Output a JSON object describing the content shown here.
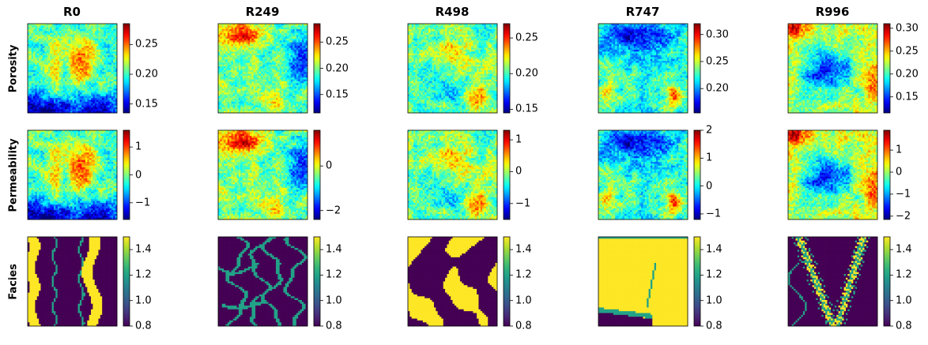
{
  "figure": {
    "rows": [
      "Porosity",
      "Permeability",
      "Facies"
    ],
    "columns": [
      "R0",
      "R249",
      "R498",
      "R747",
      "R996"
    ]
  },
  "chart_data": [
    {
      "type": "heatmap",
      "title": "R0",
      "ylabel": "Porosity",
      "colormap": "jet",
      "colorbar": {
        "range": [
          0.135,
          0.285
        ],
        "ticks": [
          0.15,
          0.2,
          0.25
        ],
        "tick_labels": [
          "0.15",
          "0.20",
          "0.25"
        ]
      }
    },
    {
      "type": "heatmap",
      "title": "R249",
      "colormap": "jet",
      "colorbar": {
        "range": [
          0.115,
          0.285
        ],
        "ticks": [
          0.15,
          0.2,
          0.25
        ],
        "tick_labels": [
          "0.15",
          "0.20",
          "0.25"
        ]
      }
    },
    {
      "type": "heatmap",
      "title": "R498",
      "colormap": "jet",
      "colorbar": {
        "range": [
          0.145,
          0.27
        ],
        "ticks": [
          0.15,
          0.2,
          0.25
        ],
        "tick_labels": [
          "0.15",
          "0.20",
          "0.25"
        ]
      }
    },
    {
      "type": "heatmap",
      "title": "R747",
      "colormap": "jet",
      "colorbar": {
        "range": [
          0.155,
          0.32
        ],
        "ticks": [
          0.2,
          0.25,
          0.3
        ],
        "tick_labels": [
          "0.20",
          "0.25",
          "0.30"
        ]
      }
    },
    {
      "type": "heatmap",
      "title": "R996",
      "colormap": "jet",
      "colorbar": {
        "range": [
          0.115,
          0.31
        ],
        "ticks": [
          0.15,
          0.2,
          0.25,
          0.3
        ],
        "tick_labels": [
          "0.15",
          "0.20",
          "0.25",
          "0.30"
        ]
      }
    },
    {
      "type": "heatmap",
      "ylabel": "Permeability",
      "colormap": "jet",
      "colorbar": {
        "range": [
          -1.6,
          1.6
        ],
        "ticks": [
          -1,
          0,
          1
        ],
        "tick_labels": [
          "−1",
          "0",
          "1"
        ]
      }
    },
    {
      "type": "heatmap",
      "colormap": "jet",
      "colorbar": {
        "range": [
          -2.4,
          1.6
        ],
        "ticks": [
          -2,
          0
        ],
        "tick_labels": [
          "−2",
          "0"
        ]
      }
    },
    {
      "type": "heatmap",
      "colormap": "jet",
      "colorbar": {
        "range": [
          -1.5,
          1.3
        ],
        "ticks": [
          -1,
          0,
          1
        ],
        "tick_labels": [
          "−1",
          "0",
          "1"
        ]
      }
    },
    {
      "type": "heatmap",
      "colormap": "jet",
      "colorbar": {
        "range": [
          -1.2,
          2.0
        ],
        "ticks": [
          -1,
          0,
          1,
          2
        ],
        "tick_labels": [
          "−1",
          "0",
          "1",
          "2"
        ]
      }
    },
    {
      "type": "heatmap",
      "colormap": "jet",
      "colorbar": {
        "range": [
          -2.15,
          1.9
        ],
        "ticks": [
          -2,
          -1,
          0,
          1
        ],
        "tick_labels": [
          "−2",
          "−1",
          "0",
          "1"
        ]
      }
    },
    {
      "type": "heatmap",
      "ylabel": "Facies",
      "colormap": "viridis",
      "colorbar": {
        "range": [
          0.8,
          1.5
        ],
        "ticks": [
          0.8,
          1.0,
          1.2,
          1.4
        ],
        "tick_labels": [
          "0.8",
          "1.0",
          "1.2",
          "1.4"
        ]
      }
    },
    {
      "type": "heatmap",
      "colormap": "viridis",
      "colorbar": {
        "range": [
          0.8,
          1.5
        ],
        "ticks": [
          0.8,
          1.0,
          1.2,
          1.4
        ],
        "tick_labels": [
          "0.8",
          "1.0",
          "1.2",
          "1.4"
        ]
      }
    },
    {
      "type": "heatmap",
      "colormap": "viridis",
      "colorbar": {
        "range": [
          0.8,
          1.5
        ],
        "ticks": [
          0.8,
          1.0,
          1.2,
          1.4
        ],
        "tick_labels": [
          "0.8",
          "1.0",
          "1.2",
          "1.4"
        ]
      }
    },
    {
      "type": "heatmap",
      "colormap": "viridis",
      "colorbar": {
        "range": [
          0.8,
          1.5
        ],
        "ticks": [
          0.8,
          1.0,
          1.2,
          1.4
        ],
        "tick_labels": [
          "0.8",
          "1.0",
          "1.2",
          "1.4"
        ]
      }
    },
    {
      "type": "heatmap",
      "colormap": "viridis",
      "colorbar": {
        "range": [
          0.8,
          1.5
        ],
        "ticks": [
          0.8,
          1.0,
          1.2,
          1.4
        ],
        "tick_labels": [
          "0.8",
          "1.0",
          "1.2",
          "1.4"
        ]
      }
    }
  ]
}
